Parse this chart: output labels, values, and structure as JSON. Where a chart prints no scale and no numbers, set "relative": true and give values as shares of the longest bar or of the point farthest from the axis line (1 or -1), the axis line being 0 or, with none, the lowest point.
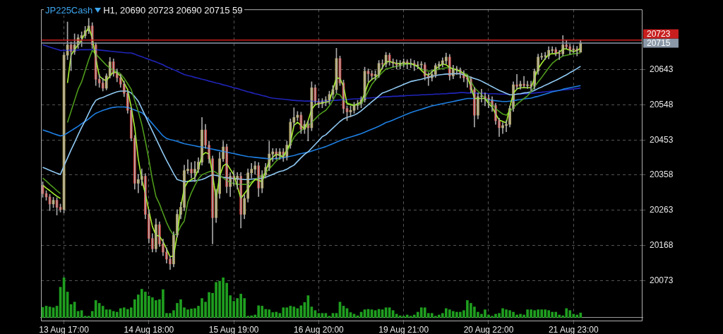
{
  "chart_data": [
    {
      "type": "candlestick",
      "title": "JP225Cash",
      "subtitle": "H1, 20690 20723 20690 20715 59",
      "categories": [
        null,
        null,
        null,
        null,
        null,
        null,
        "13 Aug 17:00",
        null,
        null,
        null,
        null,
        null,
        null,
        null,
        null,
        null,
        null,
        null,
        null,
        null,
        null,
        null,
        null,
        null,
        null,
        null,
        null,
        null,
        null,
        null,
        "14 Aug 18:00",
        null,
        null,
        null,
        null,
        null,
        null,
        null,
        null,
        null,
        null,
        null,
        null,
        null,
        null,
        null,
        null,
        null,
        null,
        null,
        null,
        null,
        null,
        null,
        "15 Aug 19:00",
        null,
        null,
        null,
        null,
        null,
        null,
        null,
        null,
        null,
        null,
        null,
        null,
        null,
        null,
        null,
        null,
        null,
        null,
        null,
        null,
        null,
        null,
        null,
        "16 Aug 20:00",
        null,
        null,
        null,
        null,
        null,
        null,
        null,
        null,
        null,
        null,
        null,
        null,
        null,
        null,
        null,
        null,
        null,
        null,
        null,
        null,
        null,
        null,
        null,
        "19 Aug 21:00",
        null,
        null,
        null,
        null,
        null,
        null,
        null,
        null,
        null,
        null,
        null,
        null,
        null,
        null,
        null,
        null,
        null,
        null,
        null,
        null,
        null,
        null,
        null,
        "20 Aug 22:00",
        null,
        null,
        null,
        null,
        null,
        null,
        null,
        null,
        null,
        null,
        null,
        null,
        null,
        null,
        null,
        null,
        null,
        null,
        null,
        null,
        null,
        null,
        null,
        "21 Aug 23:00",
        null,
        null,
        null,
        null,
        null,
        null,
        null,
        null,
        null,
        null,
        null,
        null,
        null,
        null,
        null,
        null,
        null,
        null,
        null
      ],
      "ohlc": [
        [
          20330,
          20340,
          20298,
          20308
        ],
        [
          20308,
          20316,
          20290,
          20299
        ],
        [
          20299,
          20306,
          20262,
          20280
        ],
        [
          20280,
          20298,
          20270,
          20290
        ],
        [
          20290,
          20297,
          20250,
          20271
        ],
        [
          20271,
          20280,
          20258,
          20265
        ],
        [
          20265,
          20690,
          20256,
          20682
        ],
        [
          20682,
          20772,
          20670,
          20710
        ],
        [
          20710,
          20718,
          20640,
          20692
        ],
        [
          20692,
          20740,
          20684,
          20710
        ],
        [
          20710,
          20738,
          20700,
          20729
        ],
        [
          20729,
          20745,
          20705,
          20735
        ],
        [
          20735,
          20760,
          20728,
          20748
        ],
        [
          20748,
          20782,
          20740,
          20761
        ],
        [
          20761,
          20770,
          20700,
          20710
        ],
        [
          20710,
          20716,
          20600,
          20617
        ],
        [
          20617,
          20630,
          20595,
          20607
        ],
        [
          20607,
          20620,
          20585,
          20593
        ],
        [
          20593,
          20632,
          20588,
          20626
        ],
        [
          20626,
          20676,
          20620,
          20664
        ],
        [
          20664,
          20672,
          20625,
          20632
        ],
        [
          20632,
          20645,
          20610,
          20621
        ],
        [
          20621,
          20630,
          20595,
          20604
        ],
        [
          20604,
          20612,
          20570,
          20579
        ],
        [
          20579,
          20586,
          20525,
          20533
        ],
        [
          20533,
          20540,
          20450,
          20458
        ],
        [
          20458,
          20465,
          20320,
          20336
        ],
        [
          20336,
          20360,
          20310,
          20346
        ],
        [
          20346,
          20375,
          20330,
          20355
        ],
        [
          20355,
          20362,
          20240,
          20252
        ],
        [
          20252,
          20265,
          20175,
          20187
        ],
        [
          20187,
          20200,
          20150,
          20159
        ],
        [
          20159,
          20240,
          20150,
          20224
        ],
        [
          20224,
          20232,
          20165,
          20172
        ],
        [
          20172,
          20185,
          20140,
          20150
        ],
        [
          20150,
          20162,
          20120,
          20131
        ],
        [
          20131,
          20140,
          20103,
          20118
        ],
        [
          20118,
          20205,
          20110,
          20196
        ],
        [
          20196,
          20265,
          20190,
          20252
        ],
        [
          20252,
          20285,
          20240,
          20271
        ],
        [
          20271,
          20385,
          20262,
          20370
        ],
        [
          20370,
          20400,
          20362,
          20374
        ],
        [
          20374,
          20392,
          20350,
          20364
        ],
        [
          20364,
          20395,
          20340,
          20374
        ],
        [
          20374,
          20405,
          20365,
          20393
        ],
        [
          20393,
          20514,
          20385,
          20480
        ],
        [
          20480,
          20495,
          20430,
          20439
        ],
        [
          20439,
          20450,
          20390,
          20402
        ],
        [
          20402,
          20410,
          20172,
          20243
        ],
        [
          20243,
          20320,
          20230,
          20308
        ],
        [
          20308,
          20420,
          20295,
          20402
        ],
        [
          20402,
          20450,
          20395,
          20434
        ],
        [
          20434,
          20442,
          20310,
          20327
        ],
        [
          20327,
          20365,
          20300,
          20355
        ],
        [
          20355,
          20370,
          20330,
          20346
        ],
        [
          20346,
          20365,
          20320,
          20355
        ],
        [
          20355,
          20365,
          20215,
          20252
        ],
        [
          20252,
          20305,
          20240,
          20295
        ],
        [
          20295,
          20375,
          20285,
          20364
        ],
        [
          20364,
          20390,
          20350,
          20374
        ],
        [
          20374,
          20395,
          20360,
          20383
        ],
        [
          20383,
          20392,
          20300,
          20323
        ],
        [
          20323,
          20370,
          20310,
          20359
        ],
        [
          20359,
          20390,
          20350,
          20379
        ],
        [
          20379,
          20450,
          20370,
          20415
        ],
        [
          20415,
          20430,
          20395,
          20421
        ],
        [
          20421,
          20430,
          20400,
          20411
        ],
        [
          20411,
          20430,
          20400,
          20421
        ],
        [
          20421,
          20430,
          20395,
          20406
        ],
        [
          20406,
          20450,
          20398,
          20439
        ],
        [
          20439,
          20510,
          20430,
          20501
        ],
        [
          20501,
          20540,
          20490,
          20514
        ],
        [
          20514,
          20530,
          20505,
          20520
        ],
        [
          20520,
          20528,
          20470,
          20482
        ],
        [
          20482,
          20505,
          20470,
          20495
        ],
        [
          20495,
          20505,
          20450,
          20486
        ],
        [
          20486,
          20610,
          20478,
          20594
        ],
        [
          20594,
          20602,
          20550,
          20557
        ],
        [
          20557,
          20565,
          20540,
          20551
        ],
        [
          20551,
          20565,
          20540,
          20557
        ],
        [
          20557,
          20570,
          20545,
          20561
        ],
        [
          20561,
          20585,
          20550,
          20576
        ],
        [
          20576,
          20600,
          20565,
          20589
        ],
        [
          20589,
          20701,
          20580,
          20673
        ],
        [
          20673,
          20680,
          20600,
          20607
        ],
        [
          20607,
          20615,
          20525,
          20538
        ],
        [
          20538,
          20545,
          20505,
          20529
        ],
        [
          20529,
          20545,
          20515,
          20533
        ],
        [
          20533,
          20555,
          20525,
          20546
        ],
        [
          20546,
          20560,
          20535,
          20551
        ],
        [
          20551,
          20570,
          20540,
          20561
        ],
        [
          20561,
          20650,
          20555,
          20639
        ],
        [
          20639,
          20645,
          20610,
          20632
        ],
        [
          20632,
          20640,
          20615,
          20626
        ],
        [
          20626,
          20640,
          20615,
          20630
        ],
        [
          20630,
          20668,
          20622,
          20660
        ],
        [
          20660,
          20670,
          20645,
          20658
        ],
        [
          20658,
          20690,
          20650,
          20682
        ],
        [
          20682,
          20688,
          20655,
          20664
        ],
        [
          20664,
          20672,
          20650,
          20660
        ],
        [
          20660,
          20670,
          20645,
          20656
        ],
        [
          20656,
          20668,
          20645,
          20660
        ],
        [
          20660,
          20672,
          20650,
          20664
        ],
        [
          20664,
          20670,
          20645,
          20658
        ],
        [
          20658,
          20672,
          20648,
          20660
        ],
        [
          20660,
          20668,
          20640,
          20654
        ],
        [
          20654,
          20665,
          20645,
          20656
        ],
        [
          20656,
          20665,
          20645,
          20656
        ],
        [
          20656,
          20662,
          20615,
          20626
        ],
        [
          20626,
          20635,
          20600,
          20621
        ],
        [
          20621,
          20640,
          20612,
          20630
        ],
        [
          20630,
          20660,
          20622,
          20654
        ],
        [
          20654,
          20665,
          20645,
          20658
        ],
        [
          20658,
          20675,
          20650,
          20667
        ],
        [
          20667,
          20688,
          20658,
          20677
        ],
        [
          20677,
          20684,
          20615,
          20626
        ],
        [
          20626,
          20655,
          20618,
          20645
        ],
        [
          20645,
          20652,
          20630,
          20641
        ],
        [
          20641,
          20648,
          20620,
          20632
        ],
        [
          20632,
          20640,
          20610,
          20621
        ],
        [
          20621,
          20628,
          20595,
          20617
        ],
        [
          20617,
          20624,
          20580,
          20589
        ],
        [
          20589,
          20595,
          20488,
          20520
        ],
        [
          20520,
          20580,
          20510,
          20570
        ],
        [
          20570,
          20590,
          20555,
          20570
        ],
        [
          20570,
          20580,
          20545,
          20566
        ],
        [
          20566,
          20575,
          20540,
          20561
        ],
        [
          20561,
          20570,
          20530,
          20546
        ],
        [
          20546,
          20552,
          20495,
          20505
        ],
        [
          20505,
          20512,
          20462,
          20486
        ],
        [
          20486,
          20500,
          20470,
          20492
        ],
        [
          20492,
          20505,
          20475,
          20495
        ],
        [
          20495,
          20545,
          20488,
          20538
        ],
        [
          20538,
          20610,
          20530,
          20602
        ],
        [
          20602,
          20630,
          20590,
          20598
        ],
        [
          20598,
          20612,
          20590,
          20604
        ],
        [
          20604,
          20625,
          20595,
          20600
        ],
        [
          20600,
          20612,
          20592,
          20602
        ],
        [
          20602,
          20612,
          20585,
          20598
        ],
        [
          20598,
          20645,
          20590,
          20639
        ],
        [
          20639,
          20685,
          20630,
          20677
        ],
        [
          20677,
          20688,
          20670,
          20679
        ],
        [
          20679,
          20690,
          20670,
          20680
        ],
        [
          20680,
          20705,
          20672,
          20695
        ],
        [
          20695,
          20705,
          20688,
          20697
        ],
        [
          20697,
          20703,
          20680,
          20688
        ],
        [
          20688,
          20695,
          20670,
          20686
        ],
        [
          20686,
          20735,
          20680,
          20710
        ],
        [
          20710,
          20722,
          20700,
          20705
        ],
        [
          20705,
          20712,
          20685,
          20697
        ],
        [
          20697,
          20708,
          20688,
          20699
        ],
        [
          20699,
          20706,
          20680,
          20695
        ],
        [
          20690,
          20723,
          20690,
          20715
        ],
        null,
        null,
        null,
        null,
        null,
        null,
        null,
        null,
        null,
        null,
        null,
        null,
        null,
        null,
        null,
        null,
        null
      ],
      "series": [
        {
          "type": "line",
          "color": "#a6f030",
          "values": [
            20331,
            20323,
            20316,
            20308,
            20301,
            20295,
            null,
            20607,
            20682,
            20697,
            20710,
            20723,
            20742,
            20757,
            20729,
            20673,
            20626,
            20617,
            20613,
            20626,
            20637,
            20634,
            20626,
            20607,
            20589,
            20542,
            20486,
            20402,
            20346,
            20308,
            20262,
            20219,
            20196,
            20193,
            20178,
            20159,
            20137,
            20140,
            20196,
            20271,
            20323,
            20340,
            20346,
            20351,
            20374,
            20411,
            20419,
            20415,
            20359,
            20295,
            20355,
            20383,
            20389,
            20374,
            20359,
            20327,
            20295,
            20308,
            20321,
            20335,
            20346,
            20344,
            20340,
            20368,
            20396,
            20406,
            20415,
            20411,
            20407,
            20426,
            20445,
            20492,
            20501,
            20492,
            20482,
            20505,
            20536,
            20548,
            20551,
            20553,
            20555,
            20557,
            20589,
            20621,
            20619,
            20598,
            20551,
            20548,
            20546,
            20551,
            20555,
            20579,
            20607,
            20617,
            20622,
            20630,
            20649,
            20664,
            20665,
            20662,
            20660,
            20660,
            20660,
            20660,
            20660,
            20656,
            20652,
            20641,
            20632,
            20628,
            20637,
            20645,
            20652,
            20658,
            20656,
            20649,
            20645,
            20643,
            20639,
            20632,
            20622,
            20598,
            20565,
            20565,
            20565,
            20565,
            20551,
            20542,
            20523,
            20507,
            20503,
            20499,
            20542,
            20579,
            20591,
            20594,
            20594,
            20594,
            20594,
            20621,
            20645,
            20660,
            20673,
            20684,
            20686,
            20686,
            20690,
            20699,
            20699,
            20695,
            20692,
            20695,
            20701,
            null,
            null,
            null,
            null,
            null,
            null,
            null,
            null,
            null,
            null,
            null,
            null,
            null,
            null,
            null,
            null,
            null
          ]
        },
        {
          "type": "line",
          "color": "#4e9a1c",
          "values": [
            20350,
            20342,
            20333,
            20325,
            20316,
            20308,
            null,
            20500,
            20530,
            20560,
            20590,
            20610,
            20640,
            20670,
            20695,
            20685,
            20675,
            20665,
            20655,
            20647,
            20642,
            20637,
            20632,
            20620,
            20605,
            20590,
            20560,
            20530,
            20495,
            20450,
            20400,
            20345,
            20300,
            20280,
            20255,
            20230,
            20210,
            20195,
            20200,
            20220,
            20234,
            20285,
            20310,
            20330,
            20348,
            20359,
            20363,
            20367,
            20370,
            20365,
            20358,
            20350,
            20344,
            20338,
            20335,
            20333,
            20333,
            20333,
            20333,
            20340,
            20345,
            20352,
            20358,
            20364,
            20375,
            20385,
            20396,
            20405,
            20413,
            20421,
            20440,
            20460,
            20471,
            20478,
            20485,
            20492,
            20500,
            20510,
            20520,
            20527,
            20533,
            20545,
            20560,
            20578,
            20575,
            20560,
            20553,
            20550,
            20548,
            20548,
            20550,
            20566,
            20585,
            20603,
            20615,
            20625,
            20636,
            20645,
            20647,
            20650,
            20652,
            20654,
            20656,
            20658,
            20658,
            20655,
            20650,
            20645,
            20641,
            20639,
            20640,
            20642,
            20644,
            20646,
            20648,
            20648,
            20645,
            20641,
            20637,
            20633,
            20630,
            20612,
            20594,
            20585,
            20575,
            20566,
            20557,
            20548,
            20538,
            20530,
            20523,
            20520,
            20530,
            20540,
            20550,
            20557,
            20565,
            20572,
            20583,
            20597,
            20610,
            20622,
            20635,
            20648,
            20660,
            20668,
            20674,
            20680,
            20682,
            20684,
            20686,
            20687,
            20688,
            null,
            null,
            null,
            null,
            null,
            null,
            null,
            null,
            null,
            null,
            null,
            null,
            null,
            null,
            null,
            null,
            null
          ]
        },
        {
          "type": "line",
          "color": "#8fc8f2",
          "values": [
            20379,
            20375,
            20371,
            20367,
            20363,
            20360,
            20383,
            20404,
            20426,
            20446,
            20467,
            20487,
            20505,
            20525,
            20545,
            20560,
            20565,
            20568,
            20572,
            20576,
            20580,
            20583,
            20585,
            20585,
            20585,
            20580,
            20570,
            20558,
            20538,
            20518,
            20497,
            20477,
            20457,
            20437,
            20417,
            20398,
            20380,
            20362,
            20346,
            20343,
            20340,
            20341,
            20342,
            20343,
            20344,
            20346,
            20350,
            20355,
            20359,
            20357,
            20355,
            20352,
            20351,
            20350,
            20349,
            20348,
            20347,
            20346,
            20346,
            20347,
            20348,
            20349,
            20350,
            20352,
            20356,
            20360,
            20364,
            20368,
            20370,
            20374,
            20380,
            20385,
            20395,
            20405,
            20414,
            20421,
            20431,
            20441,
            20451,
            20462,
            20467,
            20476,
            20485,
            20494,
            20503,
            20510,
            20514,
            20517,
            20520,
            20525,
            20532,
            20540,
            20548,
            20556,
            20564,
            20572,
            20580,
            20583,
            20587,
            20591,
            20595,
            20599,
            20603,
            20607,
            20611,
            20613,
            20615,
            20617,
            20620,
            20622,
            20625,
            20627,
            20629,
            20630,
            20631,
            20631,
            20632,
            20632,
            20632,
            20629,
            20626,
            20622,
            20619,
            20616,
            20612,
            20607,
            20602,
            20597,
            20592,
            20587,
            20583,
            20579,
            20575,
            20575,
            20577,
            20578,
            20580,
            20581,
            20583,
            20587,
            20592,
            20596,
            20601,
            20605,
            20610,
            20614,
            20619,
            20624,
            20629,
            20635,
            20640,
            20646,
            20652,
            null,
            null,
            null,
            null,
            null,
            null,
            null,
            null,
            null,
            null,
            null,
            null,
            null,
            null,
            null,
            null,
            null
          ]
        },
        {
          "type": "line",
          "color": "#1e7ee0",
          "values": [
            20480,
            20477,
            20474,
            20470,
            20467,
            20464,
            20466,
            20472,
            20478,
            20484,
            20490,
            20497,
            20503,
            20510,
            20518,
            20525,
            20529,
            20533,
            20536,
            20539,
            20541,
            20542,
            20542,
            20542,
            20541,
            20538,
            20534,
            20530,
            20527,
            20518,
            20508,
            20497,
            20486,
            20475,
            20464,
            20457,
            20454,
            20452,
            20449,
            20446,
            20443,
            20441,
            20439,
            20437,
            20435,
            20434,
            20432,
            20430,
            20428,
            20426,
            20424,
            20422,
            20420,
            20418,
            20416,
            20414,
            20412,
            20410,
            20408,
            20407,
            20406,
            20405,
            20404,
            20403,
            20402,
            20402,
            20403,
            20404,
            20405,
            20407,
            20409,
            20411,
            20414,
            20416,
            20418,
            20420,
            20423,
            20426,
            20429,
            20432,
            20435,
            20439,
            20443,
            20447,
            20451,
            20455,
            20458,
            20461,
            20464,
            20467,
            20470,
            20474,
            20478,
            20482,
            20486,
            20490,
            20495,
            20500,
            20503,
            20507,
            20511,
            20515,
            20519,
            20523,
            20527,
            20530,
            20533,
            20536,
            20539,
            20542,
            20545,
            20547,
            20549,
            20551,
            20553,
            20555,
            20557,
            20559,
            20561,
            20563,
            20565,
            20565,
            20565,
            null,
            null,
            20564,
            20562,
            20560,
            20559,
            20558,
            20557,
            20557,
            20558,
            20559,
            20561,
            20562,
            20564,
            20565,
            20566,
            20569,
            20571,
            20574,
            20577,
            20580,
            20583,
            20585,
            20587,
            20590,
            20592,
            20594,
            20596,
            20598,
            20600,
            null,
            null,
            null,
            null,
            null,
            null,
            null,
            null,
            null,
            null,
            null,
            null,
            null,
            null,
            null,
            null,
            null
          ]
        },
        {
          "type": "line",
          "color": "#2024b8",
          "values": [
            20710,
            20707,
            20704,
            20701,
            20698,
            20695,
            20695,
            20695,
            20696,
            20696,
            20696,
            20697,
            20697,
            20697,
            20697,
            20697,
            20696,
            20695,
            20694,
            20693,
            20692,
            20691,
            20690,
            20689,
            20688,
            20688,
            20685,
            20681,
            20678,
            20674,
            20671,
            20667,
            20664,
            20660,
            20656,
            20651,
            20647,
            20643,
            20639,
            20634,
            20630,
            20627,
            20625,
            20622,
            20620,
            20617,
            20615,
            20612,
            20610,
            20607,
            20605,
            20602,
            20600,
            20597,
            20594,
            20592,
            20589,
            20586,
            20583,
            20581,
            20578,
            20576,
            20573,
            20571,
            20568,
            20566,
            20565,
            20564,
            20563,
            20562,
            20561,
            20560,
            20559,
            20559,
            20558,
            20558,
            20558,
            20557,
            20557,
            20558,
            20558,
            20559,
            20560,
            20560,
            20561,
            20562,
            20562,
            20563,
            20564,
            20564,
            20565,
            20566,
            20566,
            20567,
            20568,
            20568,
            20569,
            20570,
            20570,
            20571,
            20571,
            20572,
            20572,
            20573,
            20573,
            20574,
            20574,
            20575,
            20575,
            20576,
            20576,
            20577,
            20577,
            20578,
            20578,
            20579,
            20579,
            20580,
            20581,
            20581,
            20580,
            20580,
            20580,
            20579,
            20579,
            20579,
            20578,
            20578,
            20578,
            20577,
            20577,
            20577,
            20576,
            null,
            20577,
            20577,
            20578,
            20578,
            20579,
            20580,
            20581,
            20582,
            20583,
            20584,
            20585,
            20586,
            20587,
            20588,
            20589,
            20590,
            20591,
            20592,
            20593,
            null,
            null,
            null,
            null,
            null,
            null,
            null,
            null,
            null,
            null,
            null,
            null,
            null,
            null,
            null,
            null,
            null
          ]
        }
      ],
      "ylim": [
        19963,
        20806
      ],
      "yticks": [
        20073,
        20168,
        20263,
        20358,
        20453,
        20548,
        20643
      ],
      "ref_lines": [
        {
          "axis": "y",
          "value": 20723,
          "label": "20723",
          "color": "#c81e1e"
        },
        {
          "axis": "y",
          "value": 20715,
          "label": "20715",
          "color": "#8a98a8"
        }
      ],
      "grid": true
    },
    {
      "type": "bar",
      "relative": true,
      "color": "#1f9e1f",
      "tick_labels": false,
      "categories": [
        null,
        null,
        null,
        null,
        null,
        null,
        null,
        null,
        null,
        null,
        null,
        null,
        null,
        null,
        null,
        null,
        null,
        null,
        null,
        null,
        null,
        null,
        null,
        null,
        null,
        null,
        null,
        null,
        null,
        null,
        null,
        null,
        null,
        null,
        null,
        null,
        null,
        null,
        null,
        null,
        null,
        null,
        null,
        null,
        null,
        null,
        null,
        null,
        null,
        null,
        null,
        null,
        null,
        null,
        null,
        null,
        null,
        null,
        null,
        null,
        null,
        null,
        null,
        null,
        null,
        null,
        null,
        null,
        null,
        null,
        null,
        null,
        null,
        null,
        null,
        null,
        null,
        null,
        null,
        null,
        null,
        null,
        null,
        null,
        null,
        null,
        null,
        null,
        null,
        null,
        null,
        null,
        null,
        null,
        null,
        null,
        null,
        null,
        null,
        null,
        null,
        null,
        null,
        null,
        null,
        null,
        null,
        null,
        null,
        null,
        null,
        null,
        null,
        null,
        null,
        null,
        null,
        null,
        null,
        null,
        null,
        null,
        null,
        null,
        null,
        null,
        null,
        null,
        null,
        null,
        null,
        null,
        null,
        null,
        null,
        null,
        null,
        null,
        null,
        null,
        null,
        null,
        null,
        null,
        null,
        null,
        null,
        null,
        null,
        null,
        null,
        null,
        null,
        null,
        null,
        null,
        null,
        null,
        null,
        null,
        null,
        null,
        null,
        null,
        null,
        null,
        null,
        null,
        null,
        null
      ],
      "values": [
        0.26,
        0.29,
        0.27,
        0.25,
        0.29,
        0.76,
        1,
        0.64,
        0.33,
        0.39,
        0.16,
        0.18,
        0.04,
        0.04,
        0.16,
        0.43,
        0.36,
        0.29,
        0.2,
        0.2,
        0.16,
        0.14,
        0.23,
        0.25,
        0.21,
        0.25,
        0.45,
        0.57,
        0.71,
        0.64,
        0.54,
        0.5,
        0.43,
        0.45,
        0.7,
        0.11,
        0.11,
        0.18,
        0.36,
        0.45,
        0.25,
        0.2,
        0.22,
        0.23,
        0.29,
        0.48,
        0.39,
        0.63,
        0.61,
        0.88,
        0.91,
        1,
        0.86,
        0.55,
        0.41,
        0.48,
        0.59,
        0.48,
        0.04,
        0.05,
        0.07,
        0.3,
        0.29,
        0.21,
        0.2,
        0.13,
        0.14,
        0.11,
        0.25,
        0.25,
        0.29,
        0.27,
        0.23,
        0.3,
        0.38,
        0.55,
        0.27,
        0.18,
        0.11,
        0.11,
        0.11,
        0.04,
        0.11,
        0.11,
        0.39,
        0.29,
        0.23,
        0.13,
        0.09,
        0.05,
        0.14,
        0.2,
        0.21,
        0.2,
        0.18,
        0.21,
        0.2,
        0.25,
        0.25,
        0.18,
        0.09,
        0.05,
        0.04,
        0.07,
        0.04,
        0.07,
        0.14,
        0.25,
        0.25,
        0.11,
        0.11,
        0.04,
        0.07,
        0.11,
        0.23,
        0.2,
        0.16,
        0.14,
        0.14,
        0.18,
        0.43,
        0.36,
        0.27,
        0.14,
        0.09,
        0.2,
        0.07,
        0.04,
        0.09,
        0.11,
        0.23,
        0.2,
        0.18,
        0.14,
        0.07,
        0.09,
        0.07,
        0.2,
        0.2,
        0.18,
        0.2,
        0.2,
        0.2,
        0.18,
        0.14,
        0.14,
        0.07,
        0.05,
        0.23,
        0.18,
        0.09,
        0.07,
        0.12,
        null,
        null,
        null,
        null,
        null,
        null,
        null,
        null,
        null,
        null,
        null,
        null,
        null,
        null,
        null,
        null,
        null
      ]
    }
  ]
}
